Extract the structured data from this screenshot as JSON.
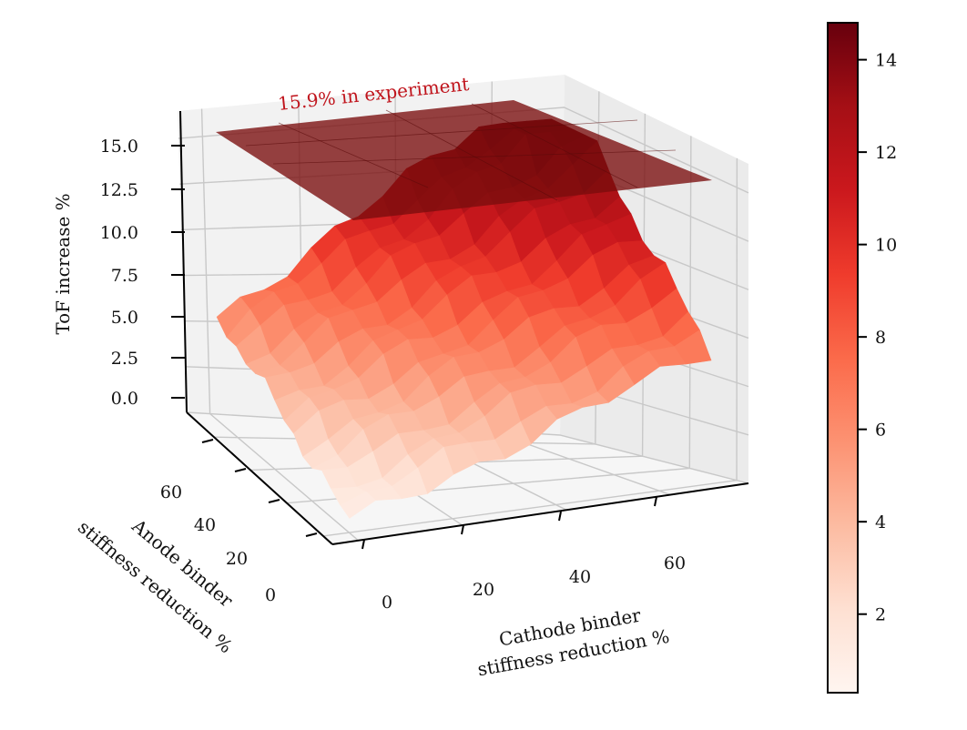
{
  "chart_data": {
    "type": "surface3d",
    "title": "",
    "zlabel": "ToF increase %",
    "xlabel_lines": [
      "Cathode binder",
      "stiffness  reduction  %"
    ],
    "ylabel_lines": [
      "Anode binder",
      "stiffness  reduction  %"
    ],
    "z_ticks": [
      "0.0",
      "2.5",
      "5.0",
      "7.5",
      "10.0",
      "12.5",
      "15.0"
    ],
    "z_tick_values": [
      0,
      2.5,
      5,
      7.5,
      10,
      12.5,
      15
    ],
    "x_ticks": [
      "0",
      "20",
      "40",
      "60"
    ],
    "x_tick_values": [
      0,
      20,
      40,
      60
    ],
    "y_ticks": [
      "0",
      "20",
      "40",
      "60"
    ],
    "y_tick_values": [
      0,
      20,
      40,
      60
    ],
    "xlim": [
      -5,
      75
    ],
    "ylim": [
      -5,
      75
    ],
    "zlim": [
      0,
      16.5
    ],
    "plane": {
      "z": 15.9,
      "label": "15.9% in experiment",
      "color": "#7a0d0d"
    },
    "colormap": "Reds",
    "colorbar": {
      "ticks": [
        "2",
        "4",
        "6",
        "8",
        "10",
        "12",
        "14"
      ],
      "tick_values": [
        2,
        4,
        6,
        8,
        10,
        12,
        14
      ],
      "min": 0.3,
      "max": 14.8
    },
    "grid": true,
    "surface_model": "z = 0.5 + 0.09*cathode + 0.075*anode + 0.0011*cathode*anode + small noise; peak ~14.8 near cathode 60-70, anode 60-70"
  }
}
